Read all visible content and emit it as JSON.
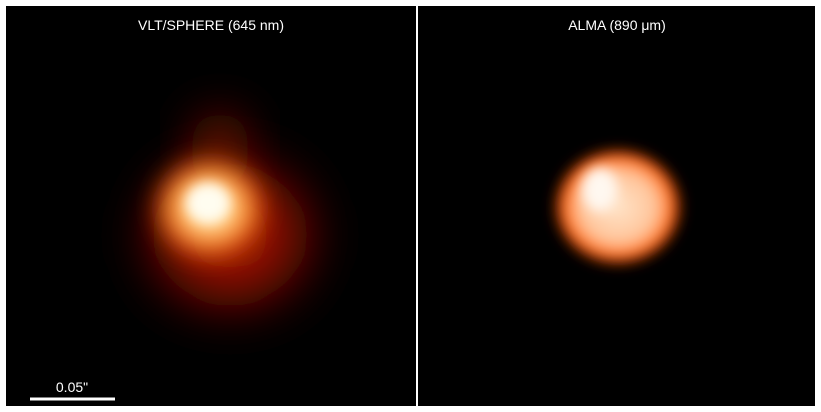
{
  "panels": [
    {
      "label": "VLT/SPHERE (645 nm)"
    },
    {
      "label": "ALMA (890 μm)"
    }
  ],
  "scale_bar": {
    "label": "0.05\""
  }
}
